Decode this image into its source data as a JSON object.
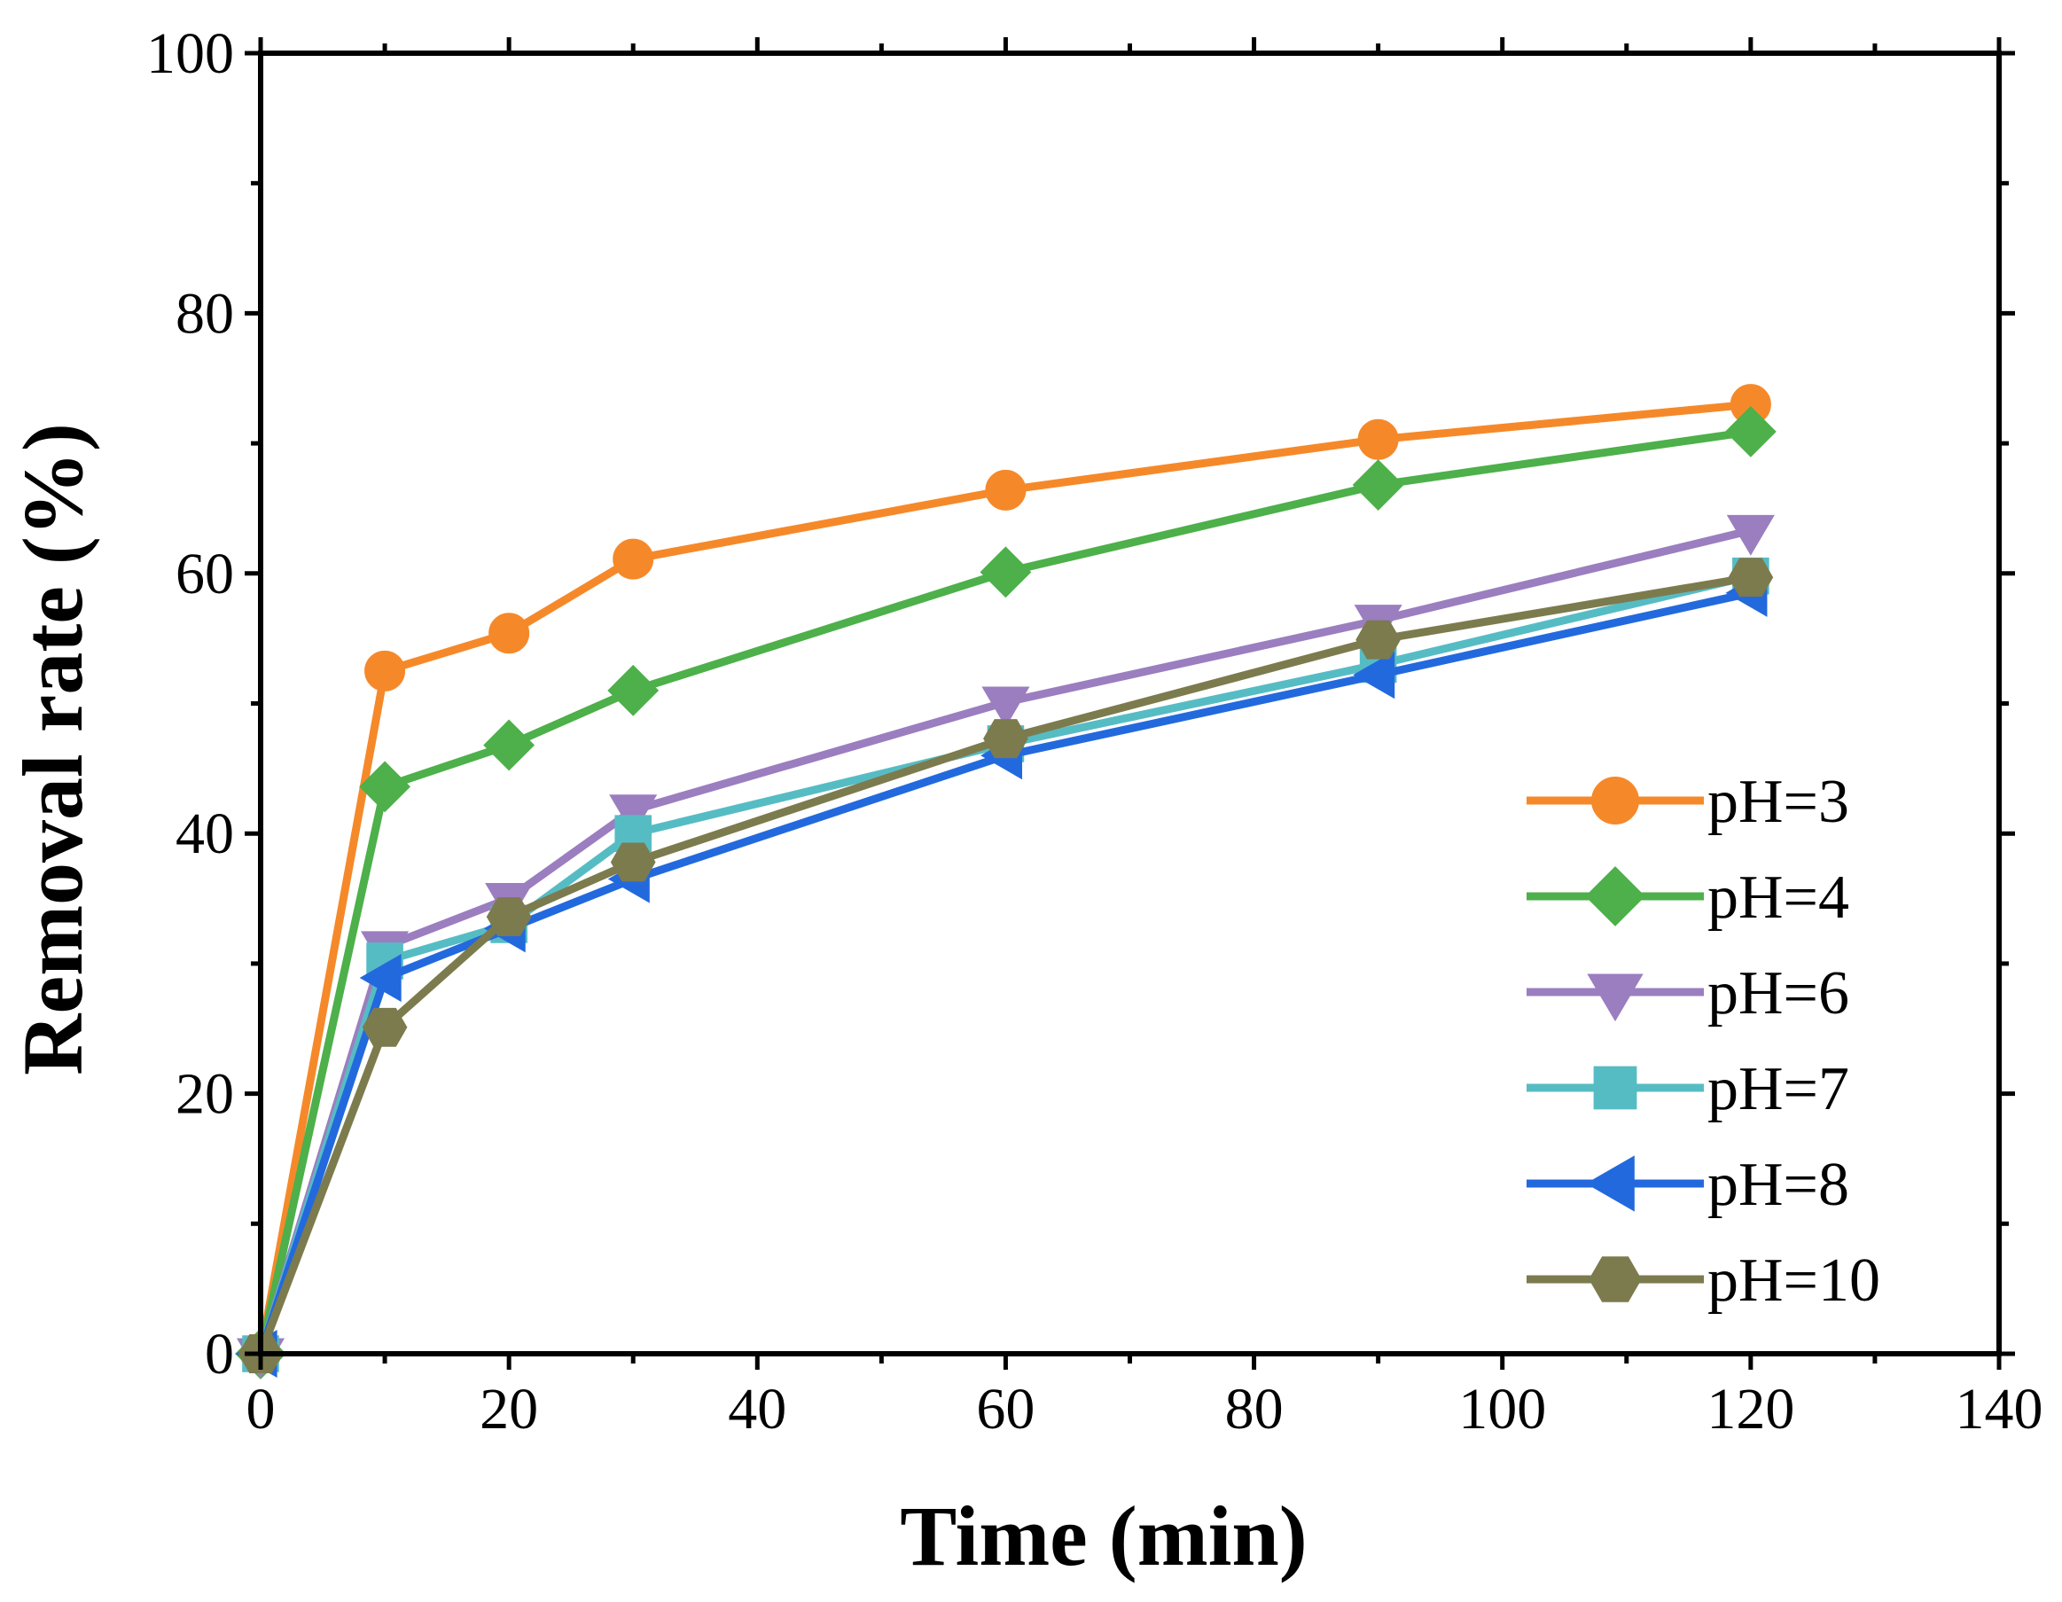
{
  "chart_data": {
    "type": "line",
    "title": "",
    "xlabel": "Time (min)",
    "ylabel": "Removal rate (%)",
    "xlim": [
      0,
      140
    ],
    "ylim": [
      0,
      100
    ],
    "xticks": [
      0,
      20,
      40,
      60,
      80,
      100,
      120,
      140
    ],
    "yticks": [
      0,
      20,
      40,
      60,
      80,
      100
    ],
    "grid": false,
    "legend_position": "lower-right",
    "x": [
      0,
      10,
      20,
      30,
      60,
      90,
      120
    ],
    "series": [
      {
        "name": "pH=3",
        "color": "#F5892A",
        "marker": "circle",
        "values": [
          0,
          52.5,
          55.4,
          61.1,
          66.4,
          70.3,
          73.0
        ]
      },
      {
        "name": "pH=4",
        "color": "#4DB04A",
        "marker": "diamond",
        "values": [
          0,
          43.6,
          46.8,
          51.0,
          60.1,
          66.8,
          70.9
        ]
      },
      {
        "name": "pH=6",
        "color": "#9B7EBF",
        "marker": "triangle-down",
        "values": [
          0,
          31.3,
          35.0,
          41.8,
          50.1,
          56.4,
          63.3
        ]
      },
      {
        "name": "pH=7",
        "color": "#56BCC4",
        "marker": "square",
        "values": [
          0,
          30.2,
          33.0,
          40.0,
          46.9,
          53.0,
          59.8
        ]
      },
      {
        "name": "pH=8",
        "color": "#2369DE",
        "marker": "triangle-left",
        "values": [
          0,
          28.9,
          32.7,
          36.5,
          46.0,
          52.2,
          58.5
        ]
      },
      {
        "name": "pH=10",
        "color": "#7C7B4E",
        "marker": "hexagon",
        "values": [
          0,
          25.1,
          33.6,
          37.8,
          47.3,
          54.9,
          59.7
        ]
      }
    ]
  }
}
